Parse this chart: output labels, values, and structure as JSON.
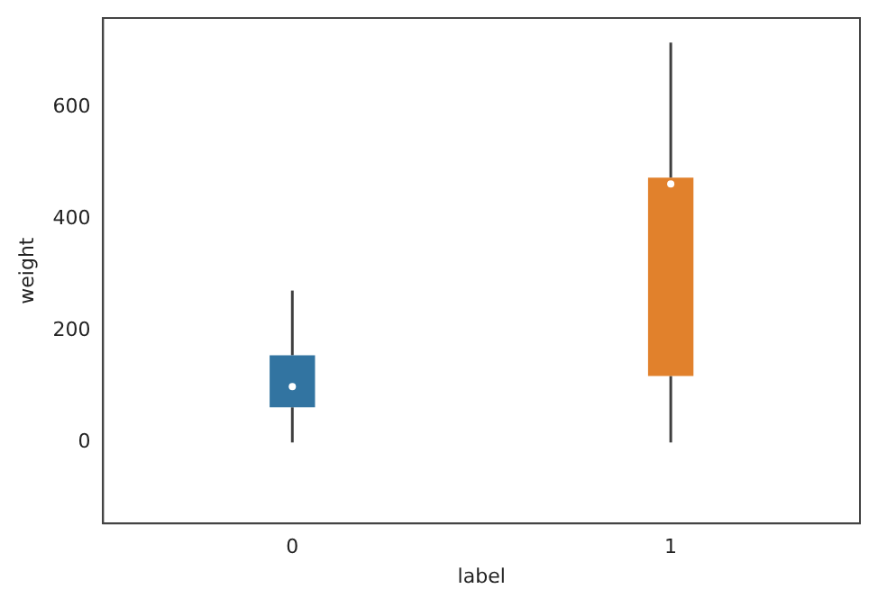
{
  "chart_data": {
    "type": "box",
    "xlabel": "label",
    "ylabel": "weight",
    "categories": [
      "0",
      "1"
    ],
    "colors": [
      "#3274a1",
      "#e1812c"
    ],
    "boxes": [
      {
        "low": 0,
        "q1": 63,
        "median": 100,
        "q3": 156,
        "high": 272
      },
      {
        "low": 0,
        "q1": 119,
        "median": 463,
        "q3": 474,
        "high": 716
      }
    ],
    "ylim": [
      -145,
      760
    ],
    "yticks": [
      0,
      200,
      400,
      600
    ],
    "grid": false,
    "legend": false
  }
}
